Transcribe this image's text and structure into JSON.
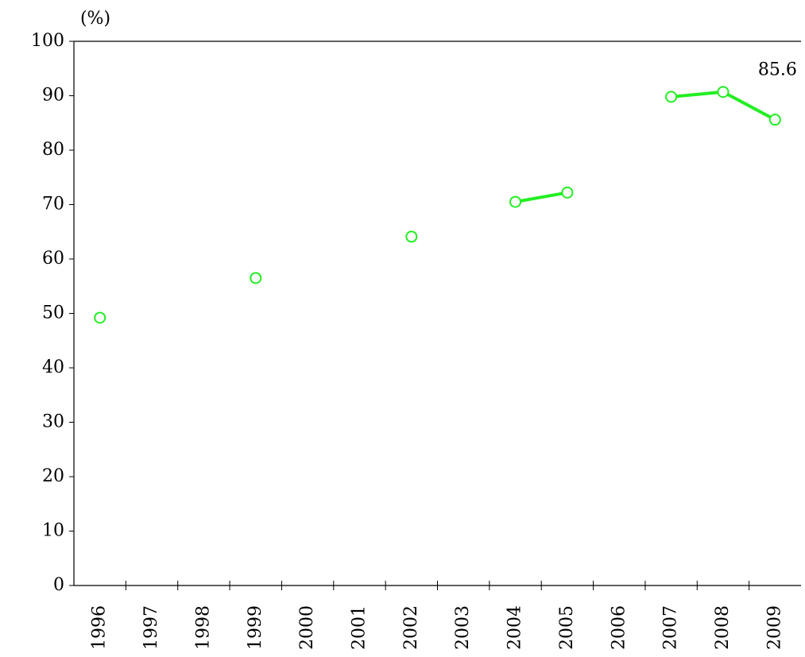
{
  "chart_data": {
    "type": "line",
    "y_label": "(%)",
    "categories": [
      "1996",
      "1997",
      "1998",
      "1999",
      "2000",
      "2001",
      "2002",
      "2003",
      "2004",
      "2005",
      "2006",
      "2007",
      "2008",
      "2009"
    ],
    "series": [
      {
        "color": "#22ee22",
        "values": [
          49.2,
          null,
          null,
          56.5,
          null,
          null,
          64.1,
          null,
          70.5,
          72.2,
          null,
          89.8,
          90.7,
          85.6
        ]
      }
    ],
    "label_last": true,
    "ylim": [
      0,
      100
    ],
    "yticks": [
      0,
      10,
      20,
      30,
      40,
      50,
      60,
      70,
      80,
      90,
      100
    ]
  }
}
